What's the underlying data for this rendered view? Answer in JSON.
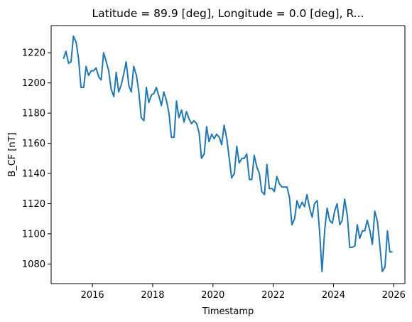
{
  "chart_data": {
    "type": "line",
    "title": "Latitude = 89.9 [deg], Longitude = 0.0 [deg], R...",
    "xlabel": "Timestamp",
    "ylabel": "B_CF [nT]",
    "xlim": [
      2014.63,
      2026.37
    ],
    "ylim": [
      1067,
      1238
    ],
    "x_ticks": [
      2016,
      2018,
      2020,
      2022,
      2024,
      2026
    ],
    "x_tick_labels": [
      "2016",
      "2018",
      "2020",
      "2022",
      "2024",
      "2026"
    ],
    "y_ticks": [
      1080,
      1100,
      1120,
      1140,
      1160,
      1180,
      1200,
      1220
    ],
    "y_tick_labels": [
      "1080",
      "1100",
      "1120",
      "1140",
      "1160",
      "1180",
      "1200",
      "1220"
    ],
    "grid": false,
    "color": "#1f77b4",
    "series": [
      {
        "x": [
          2015.04,
          2015.12,
          2015.21,
          2015.29,
          2015.37,
          2015.46,
          2015.54,
          2015.62,
          2015.71,
          2015.79,
          2015.87,
          2015.96,
          2016.04,
          2016.12,
          2016.21,
          2016.29,
          2016.37,
          2016.46,
          2016.54,
          2016.62,
          2016.71,
          2016.79,
          2016.87,
          2016.96,
          2017.04,
          2017.12,
          2017.21,
          2017.29,
          2017.37,
          2017.46,
          2017.54,
          2017.62,
          2017.71,
          2017.79,
          2017.87,
          2017.96,
          2018.04,
          2018.12,
          2018.21,
          2018.29,
          2018.37,
          2018.46,
          2018.54,
          2018.62,
          2018.71,
          2018.79,
          2018.87,
          2018.96,
          2019.04,
          2019.12,
          2019.21,
          2019.29,
          2019.37,
          2019.46,
          2019.54,
          2019.62,
          2019.71,
          2019.79,
          2019.87,
          2019.96,
          2020.04,
          2020.12,
          2020.21,
          2020.29,
          2020.37,
          2020.46,
          2020.54,
          2020.62,
          2020.71,
          2020.79,
          2020.87,
          2020.96,
          2021.04,
          2021.12,
          2021.21,
          2021.29,
          2021.37,
          2021.46,
          2021.54,
          2021.62,
          2021.71,
          2021.79,
          2021.87,
          2021.96,
          2022.04,
          2022.12,
          2022.21,
          2022.29,
          2022.37,
          2022.46,
          2022.54,
          2022.62,
          2022.71,
          2022.79,
          2022.87,
          2022.96,
          2023.04,
          2023.12,
          2023.21,
          2023.29,
          2023.37,
          2023.46,
          2023.54,
          2023.62,
          2023.71,
          2023.79,
          2023.87,
          2023.96,
          2024.04,
          2024.12,
          2024.21,
          2024.29,
          2024.37,
          2024.46,
          2024.54,
          2024.62,
          2024.71,
          2024.79,
          2024.87,
          2024.96,
          2025.04,
          2025.12,
          2025.21,
          2025.29,
          2025.37,
          2025.46,
          2025.54,
          2025.62,
          2025.71,
          2025.79,
          2025.87,
          2025.96
        ],
        "values": [
          1216,
          1221,
          1213,
          1214,
          1231,
          1227,
          1216,
          1197,
          1197,
          1211,
          1205,
          1208,
          1208,
          1210,
          1204,
          1202,
          1220,
          1214,
          1208,
          1196,
          1191,
          1207,
          1194,
          1199,
          1206,
          1214,
          1198,
          1194,
          1211,
          1205,
          1194,
          1177,
          1175,
          1197,
          1187,
          1192,
          1193,
          1197,
          1191,
          1185,
          1194,
          1188,
          1180,
          1164,
          1164,
          1188,
          1177,
          1182,
          1174,
          1181,
          1176,
          1173,
          1175,
          1173,
          1167,
          1150,
          1153,
          1171,
          1161,
          1166,
          1163,
          1166,
          1164,
          1159,
          1172,
          1163,
          1150,
          1137,
          1140,
          1158,
          1147,
          1150,
          1150,
          1153,
          1136,
          1136,
          1152,
          1144,
          1140,
          1128,
          1126,
          1146,
          1130,
          1130,
          1128,
          1138,
          1133,
          1131,
          1131,
          1131,
          1124,
          1106,
          1110,
          1122,
          1117,
          1121,
          1118,
          1126,
          1117,
          1111,
          1120,
          1122,
          1101,
          1075,
          1103,
          1117,
          1109,
          1107,
          1115,
          1120,
          1106,
          1109,
          1123,
          1112,
          1091,
          1091,
          1092,
          1106,
          1097,
          1102,
          1102,
          1109,
          1102,
          1093,
          1115,
          1108,
          1092,
          1075,
          1078,
          1102,
          1088,
          1088
        ]
      }
    ]
  }
}
